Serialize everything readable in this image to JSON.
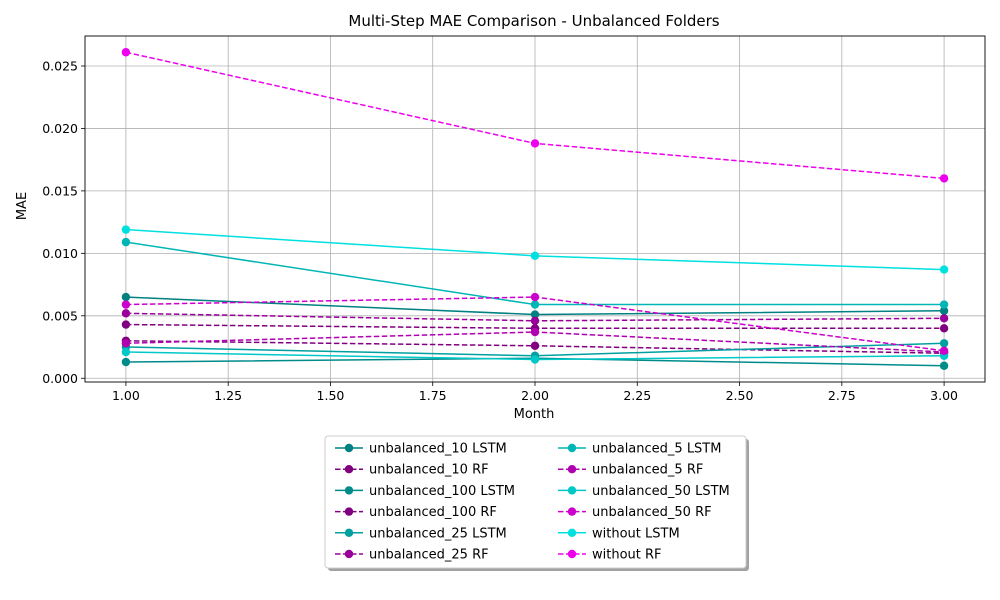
{
  "chart_data": {
    "type": "line",
    "title": "Multi-Step MAE Comparison - Unbalanced Folders",
    "xlabel": "Month",
    "ylabel": "MAE",
    "xlim": [
      0.9,
      3.1
    ],
    "ylim": [
      -0.0003,
      0.0274
    ],
    "xticks": [
      "1.00",
      "1.25",
      "1.50",
      "1.75",
      "2.00",
      "2.25",
      "2.50",
      "2.75",
      "3.00"
    ],
    "yticks": [
      "0.000",
      "0.005",
      "0.010",
      "0.015",
      "0.020",
      "0.025"
    ],
    "grid": true,
    "legend_position": "bottom-center",
    "x": [
      1,
      2,
      3
    ],
    "series": [
      {
        "name": "unbalanced_10 LSTM",
        "color": "#008080",
        "style": "solid",
        "values": [
          0.0065,
          0.0051,
          0.0054
        ]
      },
      {
        "name": "unbalanced_10 RF",
        "color": "#800080",
        "style": "dashed",
        "values": [
          0.0043,
          0.004,
          0.004
        ]
      },
      {
        "name": "unbalanced_100 LSTM",
        "color": "#008b8b",
        "style": "solid",
        "values": [
          0.0013,
          0.0016,
          0.001
        ]
      },
      {
        "name": "unbalanced_100 RF",
        "color": "#800080",
        "style": "dashed",
        "values": [
          0.003,
          0.0026,
          0.002
        ]
      },
      {
        "name": "unbalanced_25 LSTM",
        "color": "#00a0a0",
        "style": "solid",
        "values": [
          0.0025,
          0.0018,
          0.0028
        ]
      },
      {
        "name": "unbalanced_25 RF",
        "color": "#990099",
        "style": "dashed",
        "values": [
          0.0052,
          0.0046,
          0.0048
        ]
      },
      {
        "name": "unbalanced_5 LSTM",
        "color": "#00b5b5",
        "style": "solid",
        "values": [
          0.0109,
          0.0059,
          0.0059
        ]
      },
      {
        "name": "unbalanced_5 RF",
        "color": "#b000b0",
        "style": "dashed",
        "values": [
          0.0028,
          0.0037,
          0.0021
        ]
      },
      {
        "name": "unbalanced_50 LSTM",
        "color": "#00c8c8",
        "style": "solid",
        "values": [
          0.0021,
          0.0015,
          0.0018
        ]
      },
      {
        "name": "unbalanced_50 RF",
        "color": "#cc00cc",
        "style": "dashed",
        "values": [
          0.0059,
          0.0065,
          0.0022
        ]
      },
      {
        "name": "without LSTM",
        "color": "#00e0e0",
        "style": "solid",
        "values": [
          0.0119,
          0.0098,
          0.0087
        ]
      },
      {
        "name": "without RF",
        "color": "#ee00ee",
        "style": "dashed",
        "values": [
          0.0261,
          0.0188,
          0.016
        ]
      }
    ]
  }
}
